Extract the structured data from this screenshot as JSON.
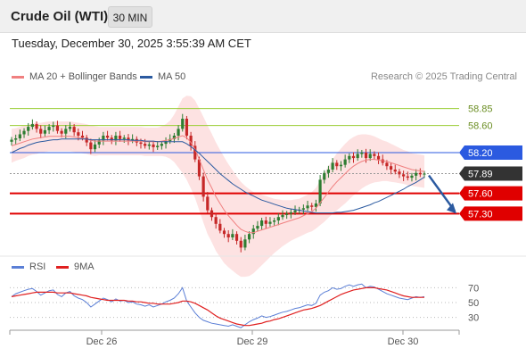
{
  "header": {
    "title": "Crude Oil (WTI)",
    "timeframe": "30 MIN"
  },
  "datetime": "Tuesday, December 30, 2025 3:55:39 AM CET",
  "legend": {
    "ma20": {
      "label": "MA 20 + Bollinger Bands",
      "color": "#f08080"
    },
    "ma50": {
      "label": "MA 50",
      "color": "#2b5aa0"
    },
    "rsi": {
      "label": "RSI",
      "color": "#5b7fd6"
    },
    "ma9": {
      "label": "9MA",
      "color": "#e02020"
    }
  },
  "credit": "Research © 2025 Trading Central",
  "colors": {
    "up": "#2e7d32",
    "down": "#c62828",
    "band": "#fde2e2",
    "resistance": "#2b5ae0",
    "support": "#e00000",
    "target_level": "#9acd32",
    "current": "#333333",
    "arrow": "#2b5aa0"
  },
  "chart_data": [
    {
      "type": "candlestick",
      "title": "Crude Oil (WTI)",
      "timeframe": "30 MIN",
      "x_tick_labels": [
        "Dec 26",
        "Dec 29",
        "Dec 30"
      ],
      "y_tick_labels": [
        "58.85",
        "58.60",
        "58.20",
        "57.89",
        "57.60",
        "57.30"
      ],
      "ylim": [
        56.7,
        59.2
      ],
      "levels": [
        {
          "value": 58.85,
          "kind": "target"
        },
        {
          "value": 58.6,
          "kind": "target"
        },
        {
          "value": 58.2,
          "kind": "resistance"
        },
        {
          "value": 57.89,
          "kind": "current"
        },
        {
          "value": 57.6,
          "kind": "support"
        },
        {
          "value": 57.3,
          "kind": "support"
        }
      ],
      "close_series": [
        58.39,
        58.41,
        58.47,
        58.52,
        58.58,
        58.62,
        58.55,
        58.48,
        58.53,
        58.58,
        58.6,
        58.52,
        58.48,
        58.55,
        58.58,
        58.5,
        58.45,
        58.42,
        58.35,
        58.25,
        58.32,
        58.38,
        58.45,
        58.42,
        58.38,
        58.45,
        58.4,
        58.42,
        58.38,
        58.4,
        58.35,
        58.33,
        58.3,
        58.32,
        58.28,
        58.3,
        58.33,
        58.37,
        58.4,
        58.45,
        58.55,
        58.7,
        58.45,
        58.3,
        58.1,
        57.85,
        57.55,
        57.35,
        57.25,
        57.15,
        57.05,
        57.0,
        56.95,
        57.0,
        56.9,
        56.8,
        56.92,
        57.0,
        57.08,
        57.12,
        57.2,
        57.15,
        57.18,
        57.2,
        57.25,
        57.28,
        57.3,
        57.32,
        57.35,
        57.36,
        57.38,
        57.42,
        57.4,
        57.45,
        57.8,
        57.9,
        57.95,
        58.05,
        58.0,
        58.02,
        58.1,
        58.15,
        58.12,
        58.18,
        58.2,
        58.12,
        58.18,
        58.15,
        58.1,
        58.05,
        58.0,
        57.95,
        57.92,
        57.88,
        57.85,
        57.83,
        57.86,
        57.9,
        57.88,
        57.89
      ],
      "ma20": [
        58.3,
        58.32,
        58.34,
        58.36,
        58.38,
        58.4,
        58.41,
        58.42,
        58.43,
        58.44,
        58.44,
        58.44,
        58.44,
        58.44,
        58.44,
        58.43,
        58.42,
        58.41,
        58.4,
        58.38,
        58.37,
        58.37,
        58.37,
        58.37,
        58.37,
        58.37,
        58.37,
        58.37,
        58.37,
        58.37,
        58.37,
        58.37,
        58.36,
        58.36,
        58.36,
        58.36,
        58.37,
        58.38,
        58.39,
        58.41,
        58.43,
        58.45,
        58.42,
        58.35,
        58.25,
        58.1,
        57.95,
        57.8,
        57.68,
        57.55,
        57.45,
        57.35,
        57.27,
        57.2,
        57.13,
        57.07,
        57.04,
        57.02,
        57.02,
        57.04,
        57.06,
        57.08,
        57.1,
        57.12,
        57.14,
        57.16,
        57.18,
        57.2,
        57.22,
        57.24,
        57.27,
        57.3,
        57.33,
        57.38,
        57.46,
        57.54,
        57.62,
        57.7,
        57.77,
        57.83,
        57.89,
        57.95,
        58.0,
        58.04,
        58.07,
        58.09,
        58.1,
        58.1,
        58.09,
        58.08,
        58.07,
        58.05,
        58.03,
        58.01,
        57.99,
        57.97,
        57.95,
        57.94,
        57.93,
        57.92
      ],
      "ma50": [
        58.2,
        58.23,
        58.26,
        58.28,
        58.31,
        58.33,
        58.35,
        58.36,
        58.37,
        58.38,
        58.39,
        58.39,
        58.4,
        58.4,
        58.4,
        58.4,
        58.4,
        58.4,
        58.4,
        58.39,
        58.39,
        58.39,
        58.39,
        58.39,
        58.39,
        58.39,
        58.39,
        58.39,
        58.39,
        58.38,
        58.38,
        58.38,
        58.37,
        58.37,
        58.37,
        58.36,
        58.36,
        58.36,
        58.36,
        58.36,
        58.36,
        58.36,
        58.33,
        58.29,
        58.24,
        58.19,
        58.13,
        58.07,
        58.01,
        57.95,
        57.89,
        57.84,
        57.79,
        57.74,
        57.7,
        57.66,
        57.62,
        57.59,
        57.56,
        57.53,
        57.5,
        57.48,
        57.46,
        57.44,
        57.42,
        57.4,
        57.38,
        57.37,
        57.36,
        57.35,
        57.34,
        57.33,
        57.32,
        57.31,
        57.31,
        57.31,
        57.31,
        57.31,
        57.32,
        57.32,
        57.33,
        57.34,
        57.35,
        57.37,
        57.39,
        57.41,
        57.43,
        57.46,
        57.48,
        57.51,
        57.54,
        57.57,
        57.6,
        57.63,
        57.66,
        57.7,
        57.73,
        57.76,
        57.8,
        57.84
      ],
      "band_width": [
        0.25,
        0.24,
        0.24,
        0.24,
        0.23,
        0.23,
        0.23,
        0.22,
        0.22,
        0.22,
        0.22,
        0.22,
        0.22,
        0.22,
        0.22,
        0.22,
        0.22,
        0.22,
        0.22,
        0.22,
        0.22,
        0.21,
        0.21,
        0.21,
        0.21,
        0.21,
        0.21,
        0.21,
        0.21,
        0.21,
        0.21,
        0.21,
        0.21,
        0.21,
        0.21,
        0.21,
        0.22,
        0.24,
        0.28,
        0.35,
        0.45,
        0.55,
        0.62,
        0.68,
        0.72,
        0.75,
        0.78,
        0.8,
        0.8,
        0.8,
        0.79,
        0.78,
        0.76,
        0.74,
        0.72,
        0.7,
        0.67,
        0.64,
        0.6,
        0.56,
        0.52,
        0.48,
        0.44,
        0.4,
        0.37,
        0.34,
        0.32,
        0.3,
        0.29,
        0.28,
        0.28,
        0.28,
        0.29,
        0.3,
        0.33,
        0.36,
        0.38,
        0.4,
        0.42,
        0.43,
        0.44,
        0.44,
        0.43,
        0.42,
        0.4,
        0.38,
        0.36,
        0.34,
        0.32,
        0.3,
        0.29,
        0.28,
        0.27,
        0.26,
        0.25,
        0.25,
        0.24,
        0.24,
        0.24,
        0.24
      ],
      "forecast_arrow": {
        "from": 57.89,
        "to": 57.3
      }
    },
    {
      "type": "line",
      "title": "RSI",
      "y_tick_labels": [
        "70",
        "50",
        "30"
      ],
      "ylim": [
        15,
        85
      ],
      "series": [
        {
          "name": "RSI",
          "values": [
            58,
            62,
            64,
            66,
            68,
            69,
            65,
            60,
            63,
            66,
            67,
            61,
            58,
            63,
            65,
            59,
            56,
            54,
            50,
            44,
            48,
            52,
            56,
            54,
            51,
            55,
            52,
            53,
            50,
            51,
            48,
            47,
            45,
            47,
            44,
            46,
            48,
            51,
            53,
            56,
            62,
            70,
            52,
            44,
            36,
            30,
            26,
            24,
            22,
            21,
            20,
            19,
            18,
            20,
            18,
            16,
            20,
            24,
            27,
            29,
            32,
            30,
            31,
            33,
            35,
            37,
            38,
            40,
            42,
            43,
            45,
            47,
            46,
            49,
            60,
            64,
            66,
            70,
            68,
            69,
            72,
            74,
            72,
            74,
            75,
            70,
            72,
            71,
            68,
            65,
            62,
            60,
            58,
            56,
            55,
            54,
            56,
            58,
            57,
            58
          ]
        },
        {
          "name": "9MA",
          "values": [
            58,
            59,
            60,
            61,
            62,
            63,
            64,
            64,
            64,
            64,
            64,
            63,
            63,
            63,
            63,
            62,
            61,
            60,
            59,
            57,
            56,
            55,
            54,
            53,
            53,
            53,
            53,
            53,
            52,
            52,
            51,
            51,
            50,
            49,
            49,
            48,
            48,
            48,
            48,
            49,
            50,
            52,
            52,
            51,
            49,
            46,
            43,
            40,
            36,
            32,
            29,
            27,
            25,
            23,
            21,
            20,
            19,
            19,
            20,
            21,
            22,
            24,
            25,
            27,
            28,
            30,
            32,
            34,
            36,
            38,
            40,
            41,
            42,
            44,
            46,
            49,
            52,
            55,
            58,
            61,
            63,
            65,
            67,
            68,
            69,
            70,
            70,
            70,
            69,
            68,
            67,
            65,
            63,
            61,
            59,
            58,
            57,
            57,
            57,
            57
          ]
        }
      ]
    }
  ]
}
